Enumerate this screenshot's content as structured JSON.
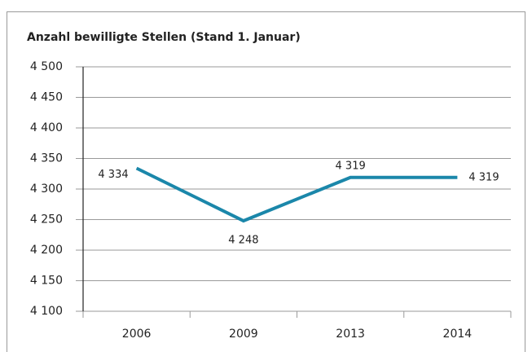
{
  "chart_data": {
    "type": "line",
    "title": "Anzahl bewilligte Stellen (Stand 1. Januar)",
    "categories": [
      "2006",
      "2009",
      "2013",
      "2014"
    ],
    "series": [
      {
        "name": null,
        "color": "#1b87aa",
        "values": [
          4334,
          4248,
          4319,
          4319
        ],
        "value_labels": [
          "4 334",
          "4 248",
          "4 319",
          "4 319"
        ]
      }
    ],
    "ylim": [
      4100,
      4500
    ],
    "yticks": [
      {
        "value": 4100,
        "label": "4 100"
      },
      {
        "value": 4150,
        "label": "4 150"
      },
      {
        "value": 4200,
        "label": "4 200"
      },
      {
        "value": 4250,
        "label": "4 250"
      },
      {
        "value": 4300,
        "label": "4 300"
      },
      {
        "value": 4350,
        "label": "4 350"
      },
      {
        "value": 4400,
        "label": "4 400"
      },
      {
        "value": 4450,
        "label": "4 450"
      },
      {
        "value": 4500,
        "label": "4 500"
      }
    ],
    "grid": true
  }
}
